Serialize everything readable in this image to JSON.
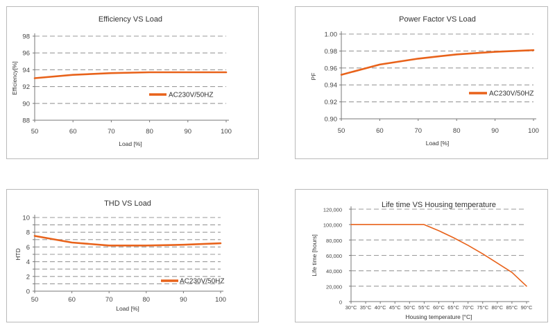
{
  "colors": {
    "series": "#e8621a",
    "grid": "#9a9a9a",
    "axis": "#777777"
  },
  "chart_data": [
    {
      "type": "line",
      "title": "Efficiency VS Load",
      "xlabel": "Load [%]",
      "ylabel": "Efficiency[%]",
      "xlim": [
        50,
        100
      ],
      "ylim": [
        88,
        98
      ],
      "x_ticks": [
        "50",
        "60",
        "70",
        "80",
        "90",
        "100"
      ],
      "y_ticks": [
        "88",
        "90",
        "92",
        "94",
        "96",
        "98"
      ],
      "grid": true,
      "legend_position": "right-middle",
      "series": [
        {
          "name": "AC230V/50HZ",
          "x": [
            50,
            60,
            70,
            80,
            90,
            100
          ],
          "y": [
            93.0,
            93.4,
            93.6,
            93.7,
            93.7,
            93.7
          ]
        }
      ]
    },
    {
      "type": "line",
      "title": "Power Factor VS Load",
      "xlabel": "Load [%]",
      "ylabel": "PF",
      "xlim": [
        50,
        100
      ],
      "ylim": [
        0.9,
        1.0
      ],
      "x_ticks": [
        "50",
        "60",
        "70",
        "80",
        "90",
        "100"
      ],
      "y_ticks": [
        "0.90",
        "0.92",
        "0.94",
        "0.96",
        "0.98",
        "1.00"
      ],
      "grid": true,
      "legend_position": "right-middle",
      "series": [
        {
          "name": "AC230V/50HZ",
          "x": [
            50,
            60,
            70,
            80,
            90,
            100
          ],
          "y": [
            0.952,
            0.964,
            0.971,
            0.976,
            0.979,
            0.981
          ]
        }
      ]
    },
    {
      "type": "line",
      "title": "THD VS Load",
      "xlabel": "Load [%]",
      "ylabel": "HTD",
      "xlim": [
        50,
        100
      ],
      "ylim": [
        0,
        10
      ],
      "x_ticks": [
        "50",
        "60",
        "70",
        "80",
        "90",
        "100"
      ],
      "y_ticks": [
        "0",
        "2",
        "4",
        "6",
        "8",
        "10"
      ],
      "y_minor_ticks": [
        "1",
        "3",
        "5",
        "7",
        "9"
      ],
      "grid": true,
      "legend_position": "bottom-right",
      "series": [
        {
          "name": "AC230V/50HZ",
          "x": [
            50,
            60,
            70,
            80,
            90,
            100
          ],
          "y": [
            7.5,
            6.6,
            6.2,
            6.2,
            6.3,
            6.5
          ]
        }
      ]
    },
    {
      "type": "line",
      "title": "Life time VS Housing temperature",
      "xlabel": "Housing temperature [°C]",
      "ylabel": "Life time [hours]",
      "xlim": [
        30,
        90
      ],
      "ylim": [
        0,
        120000
      ],
      "x_ticks": [
        "30°C",
        "35°C",
        "40°C",
        "45°C",
        "50°C",
        "55°C",
        "60°C",
        "65°C",
        "70°C",
        "75°C",
        "80°C",
        "85°C",
        "90°C"
      ],
      "y_ticks": [
        "0",
        "20,000",
        "40,000",
        "60,000",
        "80,000",
        "100,000",
        "120,000"
      ],
      "grid": true,
      "series": [
        {
          "x": [
            30,
            35,
            40,
            45,
            50,
            55,
            60,
            65,
            70,
            75,
            80,
            85,
            90
          ],
          "y": [
            100000,
            100000,
            100000,
            100000,
            100000,
            100000,
            92000,
            83000,
            73000,
            62000,
            50000,
            38000,
            20000
          ]
        }
      ]
    }
  ]
}
